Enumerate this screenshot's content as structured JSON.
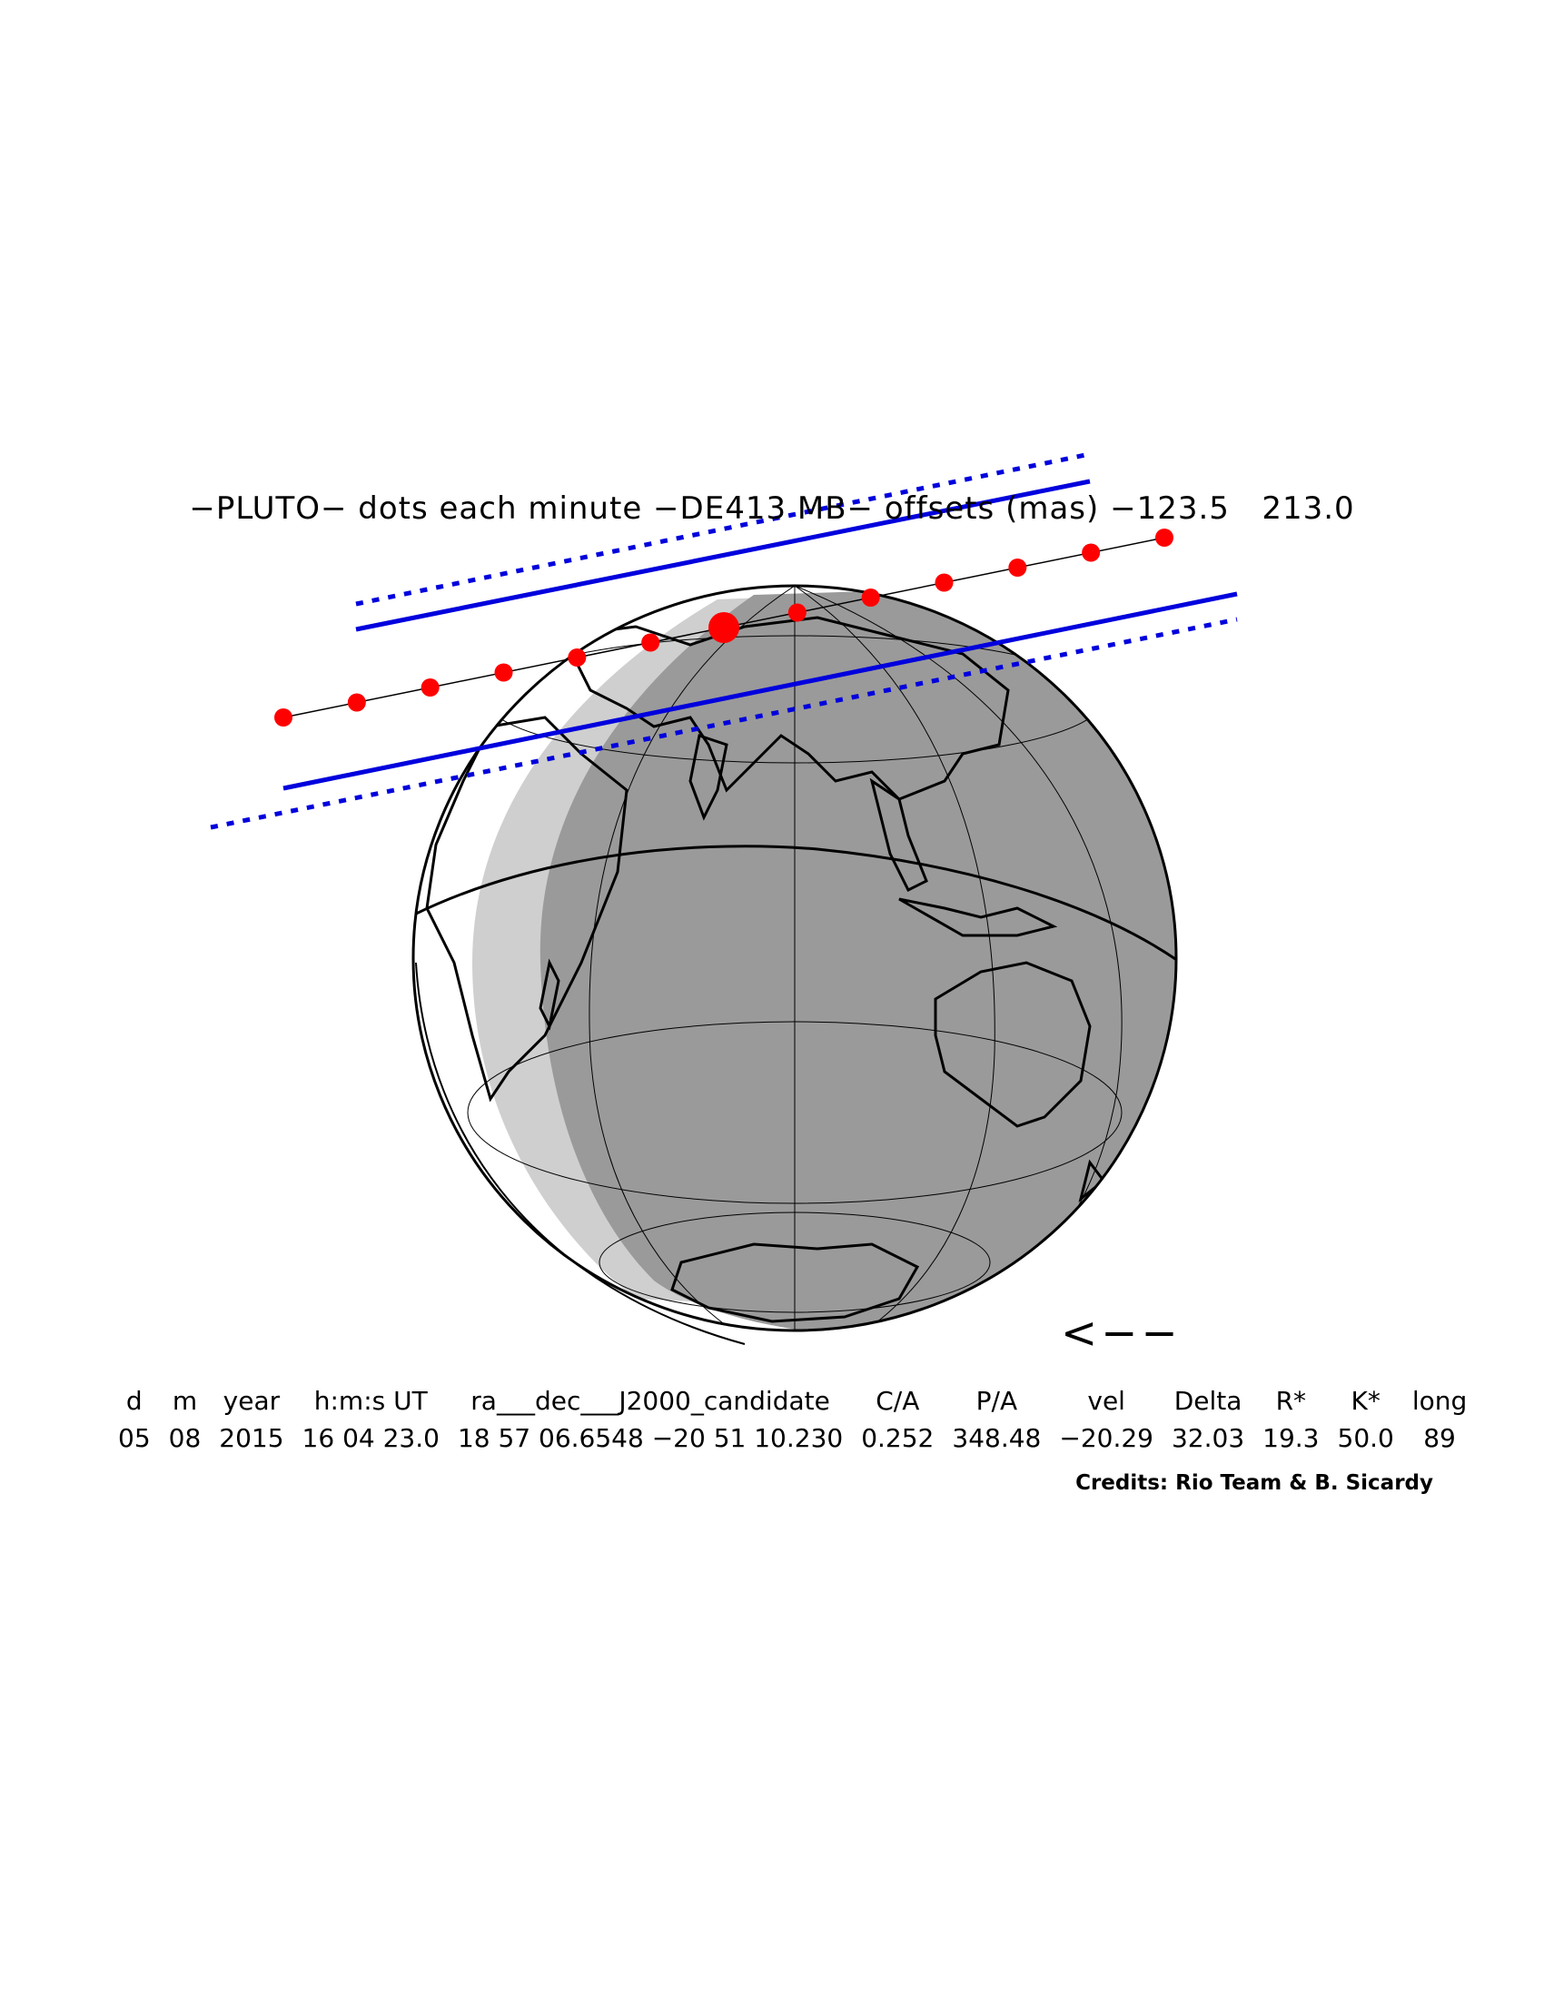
{
  "title": "−PLUTO− dots each minute −DE413 MB− offsets (mas) −123.5   213.0",
  "direction_arrow": "<−−",
  "table": {
    "headers": [
      "d",
      "m",
      "year",
      "h:m:s UT",
      "ra___dec___J2000_candidate",
      "C/A",
      "P/A",
      "vel",
      "Delta",
      "R*",
      "K*",
      "long"
    ],
    "values": [
      "05",
      "08",
      "2015",
      "16 04 23.0",
      "18 57 06.6548 −20 51 10.230",
      "0.252",
      "348.48",
      "−20.29",
      "32.03",
      "19.3",
      "50.0",
      "89"
    ]
  },
  "credits": "Credits: Rio Team & B. Sicardy",
  "colors": {
    "shadow_path": "#0000dd",
    "dots": "#ff0000",
    "night_side": "#9a9a9a",
    "twilight": "#cfcfcf",
    "day_side": "#ffffff"
  },
  "map": {
    "projection": "orthographic",
    "dot_count": 13,
    "central_dot": 7
  }
}
